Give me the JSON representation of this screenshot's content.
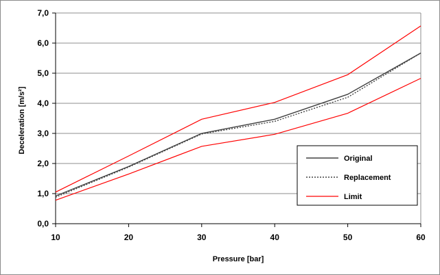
{
  "chart_data": {
    "type": "line",
    "title": "",
    "xlabel": "Pressure [bar]",
    "ylabel": "Deceleration [m/s²]",
    "x": [
      10,
      20,
      30,
      40,
      50,
      60
    ],
    "x_tick_labels": [
      "10",
      "20",
      "30",
      "40",
      "50",
      "60"
    ],
    "y_tick_labels": [
      "0,0",
      "1,0",
      "2,0",
      "3,0",
      "4,0",
      "5,0",
      "6,0",
      "7,0"
    ],
    "xlim": [
      10,
      60
    ],
    "ylim": [
      0,
      7
    ],
    "grid": "horizontal",
    "legend_position": "lower-right",
    "series": [
      {
        "name": "Original",
        "color": "#404040",
        "dash": "solid",
        "values": [
          0.92,
          1.9,
          3.0,
          3.47,
          4.3,
          5.67
        ]
      },
      {
        "name": "Replacement",
        "color": "#404040",
        "dash": "dotted",
        "values": [
          0.88,
          1.88,
          2.98,
          3.4,
          4.2,
          5.67
        ]
      },
      {
        "name": "Limit",
        "color": "#ff0000",
        "dash": "solid",
        "values": [
          1.05,
          2.25,
          3.47,
          4.03,
          4.95,
          6.57
        ]
      },
      {
        "name": "",
        "color": "#ff0000",
        "dash": "solid",
        "values": [
          0.78,
          1.65,
          2.57,
          2.97,
          3.67,
          4.83
        ]
      }
    ]
  }
}
